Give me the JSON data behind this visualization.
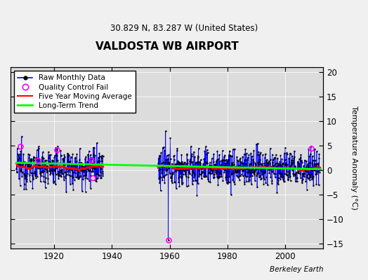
{
  "title": "VALDOSTA WB AIRPORT",
  "subtitle": "30.829 N, 83.287 W (United States)",
  "ylabel": "Temperature Anomaly (°C)",
  "credit": "Berkeley Earth",
  "xlim": [
    1905,
    2013
  ],
  "ylim": [
    -16,
    21
  ],
  "yticks": [
    -15,
    -10,
    -5,
    0,
    5,
    10,
    15,
    20
  ],
  "xticks": [
    1920,
    1940,
    1960,
    1980,
    2000
  ],
  "bg_color": "#dcdcdc",
  "fig_color": "#f0f0f0",
  "seed": 12345,
  "gap_start": 1937,
  "gap_end": 1956,
  "data_start": 1907,
  "data_end": 2012,
  "qc_times": [
    1908.3,
    1914.5,
    1921.0,
    1932.8,
    1933.5,
    2009.0
  ],
  "qc_vals": [
    4.8,
    2.0,
    4.1,
    2.0,
    -1.5,
    4.5
  ],
  "qc_spike_time": 1959.5,
  "qc_spike_val": -14.2
}
